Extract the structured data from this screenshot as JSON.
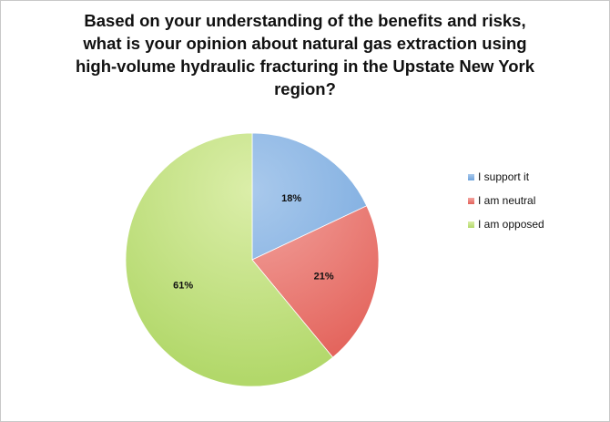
{
  "chart_data": {
    "type": "pie",
    "title_lines": [
      "Based on your understanding of the benefits and risks,",
      "what is your opinion about natural gas extraction using",
      "high-volume hydraulic fracturing in the Upstate New York",
      "region?"
    ],
    "slices": [
      {
        "name": "I support it",
        "value": 18,
        "label": "18%",
        "color": "#6fa3dc",
        "color_light": "#a9c9ec"
      },
      {
        "name": "I am neutral",
        "value": 21,
        "label": "21%",
        "color": "#e3625a",
        "color_light": "#f3a6a1"
      },
      {
        "name": "I am opposed",
        "value": 61,
        "label": "61%",
        "color": "#b2d86a",
        "color_light": "#dbeea9"
      }
    ],
    "start_angle_deg": 0,
    "direction": "clockwise",
    "legend_position": "right"
  }
}
